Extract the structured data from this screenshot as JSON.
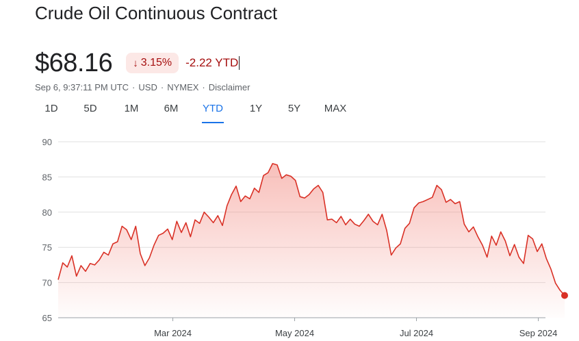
{
  "header": {
    "title": "Crude Oil Continuous Contract"
  },
  "quote": {
    "price": "$68.16",
    "change_percent": "3.15%",
    "ytd_change": "-2.22 YTD",
    "meta": [
      "Sep 6, 9:37:11 PM UTC",
      "USD",
      "NYMEX",
      "Disclaimer"
    ]
  },
  "tabs": [
    {
      "label": "1D"
    },
    {
      "label": "5D"
    },
    {
      "label": "1M"
    },
    {
      "label": "6M"
    },
    {
      "label": "YTD",
      "active": true
    },
    {
      "label": "1Y"
    },
    {
      "label": "5Y"
    },
    {
      "label": "MAX"
    }
  ],
  "colors": {
    "line": "#d93025",
    "fill_top": "#f28b82",
    "grid": "#e0e0e0",
    "negative_text": "#a50e0e",
    "accent": "#1a73e8"
  },
  "icons": {
    "change": "arrow-down-icon"
  },
  "chart_data": {
    "type": "area",
    "ylim": [
      65,
      90
    ],
    "yticks": [
      65,
      70,
      75,
      80,
      85,
      90
    ],
    "xlabel": "",
    "ylabel": "",
    "xticks": [
      {
        "label": "Mar 2024",
        "x": 2024.16
      },
      {
        "label": "May 2024",
        "x": 2024.33
      },
      {
        "label": "Jul 2024",
        "x": 2024.5
      },
      {
        "label": "Sep 2024",
        "x": 2024.67
      }
    ],
    "x_start": 2024.0,
    "x_end": 2024.68,
    "grid": true,
    "series": [
      {
        "values": [
          70.4,
          72.8,
          72.2,
          73.8,
          70.9,
          72.4,
          71.6,
          72.7,
          72.5,
          73.2,
          74.3,
          73.9,
          75.5,
          75.8,
          78.0,
          77.5,
          76.1,
          78.0,
          74.1,
          72.4,
          73.5,
          75.3,
          76.7,
          77.0,
          77.6,
          76.1,
          78.7,
          77.1,
          78.5,
          76.5,
          78.9,
          78.4,
          80.0,
          79.3,
          78.5,
          79.5,
          78.1,
          80.9,
          82.5,
          83.7,
          81.5,
          82.3,
          81.9,
          83.4,
          82.8,
          85.2,
          85.6,
          86.9,
          86.7,
          84.8,
          85.3,
          85.1,
          84.5,
          82.2,
          82.0,
          82.5,
          83.3,
          83.8,
          82.8,
          78.9,
          79.0,
          78.5,
          79.4,
          78.2,
          79.0,
          78.3,
          78.0,
          78.8,
          79.7,
          78.7,
          78.2,
          79.7,
          77.4,
          73.9,
          74.9,
          75.5,
          77.7,
          78.4,
          80.6,
          81.3,
          81.5,
          81.8,
          82.1,
          83.8,
          83.2,
          81.4,
          81.8,
          81.2,
          81.5,
          78.3,
          77.2,
          77.9,
          76.5,
          75.3,
          73.6,
          76.6,
          75.3,
          77.2,
          75.9,
          73.8,
          75.4,
          73.6,
          72.7,
          76.7,
          76.2,
          74.4,
          75.5,
          73.4,
          71.9,
          69.9,
          68.9,
          68.16
        ]
      }
    ]
  }
}
